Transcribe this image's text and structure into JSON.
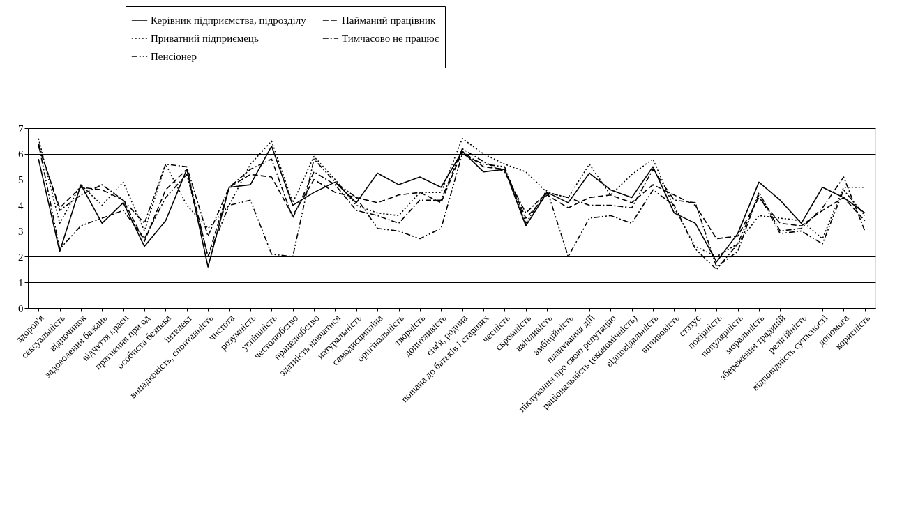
{
  "chart_data": {
    "type": "line",
    "categories": [
      "здоров'я",
      "сексуальність",
      "відпочинок",
      "задоволення бажань",
      "відчуття краси",
      "прагнення при од",
      "особиста безпека",
      "інтелект",
      "випадковість, спонтанність",
      "чистота",
      "розумність",
      "успішність",
      "честолюбство",
      "працелюбство",
      "здатність навчатися",
      "натуральність",
      "самодисципліна",
      "оригінальність",
      "творчість",
      "допитливість",
      "сім'я, родина",
      "пошана до батьків і старших",
      "чесність",
      "скромність",
      "ввічливість",
      "амбіційність",
      "планування дій",
      "піклування про свою репутацію",
      "раціональність (економічність)",
      "відповідальність",
      "впливовість",
      "статус",
      "покірність",
      "популярність",
      "моральність",
      "збереження традицій",
      "релігійність",
      "відповідність сучасності",
      "допомога",
      "корисність"
    ],
    "series": [
      {
        "name": "Керівник підприємства, підрозділу",
        "color": "#000000",
        "line_style": "solid",
        "values": [
          5.8,
          2.2,
          4.8,
          3.3,
          4.1,
          2.4,
          3.4,
          5.4,
          1.6,
          4.7,
          4.8,
          6.3,
          4.0,
          4.5,
          4.9,
          4.1,
          5.25,
          4.8,
          5.1,
          4.7,
          6.1,
          5.3,
          5.4,
          3.2,
          4.5,
          4.1,
          5.25,
          4.6,
          4.3,
          5.5,
          3.7,
          3.3,
          1.8,
          2.9,
          4.9,
          4.2,
          3.3,
          4.7,
          4.3,
          3.7
        ]
      },
      {
        "name": "Найманий працівник",
        "color": "#000000",
        "line_style": "dashed",
        "values": [
          6.3,
          3.9,
          4.7,
          4.6,
          4.2,
          2.6,
          4.6,
          5.4,
          2.0,
          4.7,
          5.2,
          5.1,
          3.6,
          5.0,
          4.5,
          4.3,
          4.1,
          4.4,
          4.5,
          4.1,
          6.1,
          5.5,
          5.4,
          3.5,
          4.4,
          3.9,
          4.3,
          4.4,
          4.1,
          4.8,
          4.4,
          4.0,
          2.7,
          2.8,
          4.3,
          3.3,
          3.2,
          3.8,
          4.3,
          3.4
        ]
      },
      {
        "name": "Приватний підприємець",
        "color": "#000000",
        "line_style": "dotted",
        "values": [
          6.6,
          3.3,
          4.8,
          4.0,
          4.9,
          3.0,
          5.6,
          4.0,
          3.1,
          4.0,
          5.6,
          6.5,
          4.1,
          5.9,
          5.0,
          4.0,
          3.7,
          3.6,
          4.5,
          4.5,
          6.6,
          6.0,
          5.6,
          5.3,
          4.5,
          4.3,
          5.6,
          4.4,
          5.2,
          5.8,
          3.9,
          2.4,
          2.0,
          2.5,
          3.6,
          3.5,
          3.4,
          2.7,
          4.7,
          4.7
        ]
      },
      {
        "name": "Тимчасово не працює",
        "color": "#000000",
        "line_style": "dashdot",
        "values": [
          6.4,
          3.8,
          4.4,
          4.8,
          4.2,
          3.3,
          5.6,
          5.5,
          2.8,
          4.7,
          5.4,
          5.8,
          3.5,
          5.3,
          4.8,
          3.8,
          3.6,
          3.3,
          4.2,
          4.2,
          6.2,
          5.7,
          5.3,
          3.7,
          4.5,
          4.3,
          4.0,
          4.0,
          3.9,
          5.4,
          4.2,
          4.1,
          1.6,
          2.2,
          4.5,
          3.0,
          3.1,
          3.9,
          5.1,
          3.0
        ]
      },
      {
        "name": "Пенсіонер",
        "color": "#000000",
        "line_style": "dashdotdot",
        "values": [
          6.4,
          2.3,
          3.2,
          3.5,
          3.8,
          2.7,
          4.3,
          5.2,
          2.0,
          4.0,
          4.2,
          2.1,
          2.0,
          5.8,
          4.9,
          4.3,
          3.1,
          3.0,
          2.7,
          3.1,
          6.0,
          5.6,
          5.5,
          3.3,
          4.6,
          2.0,
          3.5,
          3.6,
          3.3,
          4.6,
          4.0,
          2.3,
          1.5,
          2.5,
          4.4,
          2.9,
          3.0,
          2.5,
          4.6,
          3.6
        ]
      }
    ],
    "ylim": [
      0,
      7
    ],
    "yticks": [
      0,
      1,
      2,
      3,
      4,
      5,
      6,
      7
    ],
    "grid": "y",
    "legend": "top",
    "marker": "none"
  }
}
